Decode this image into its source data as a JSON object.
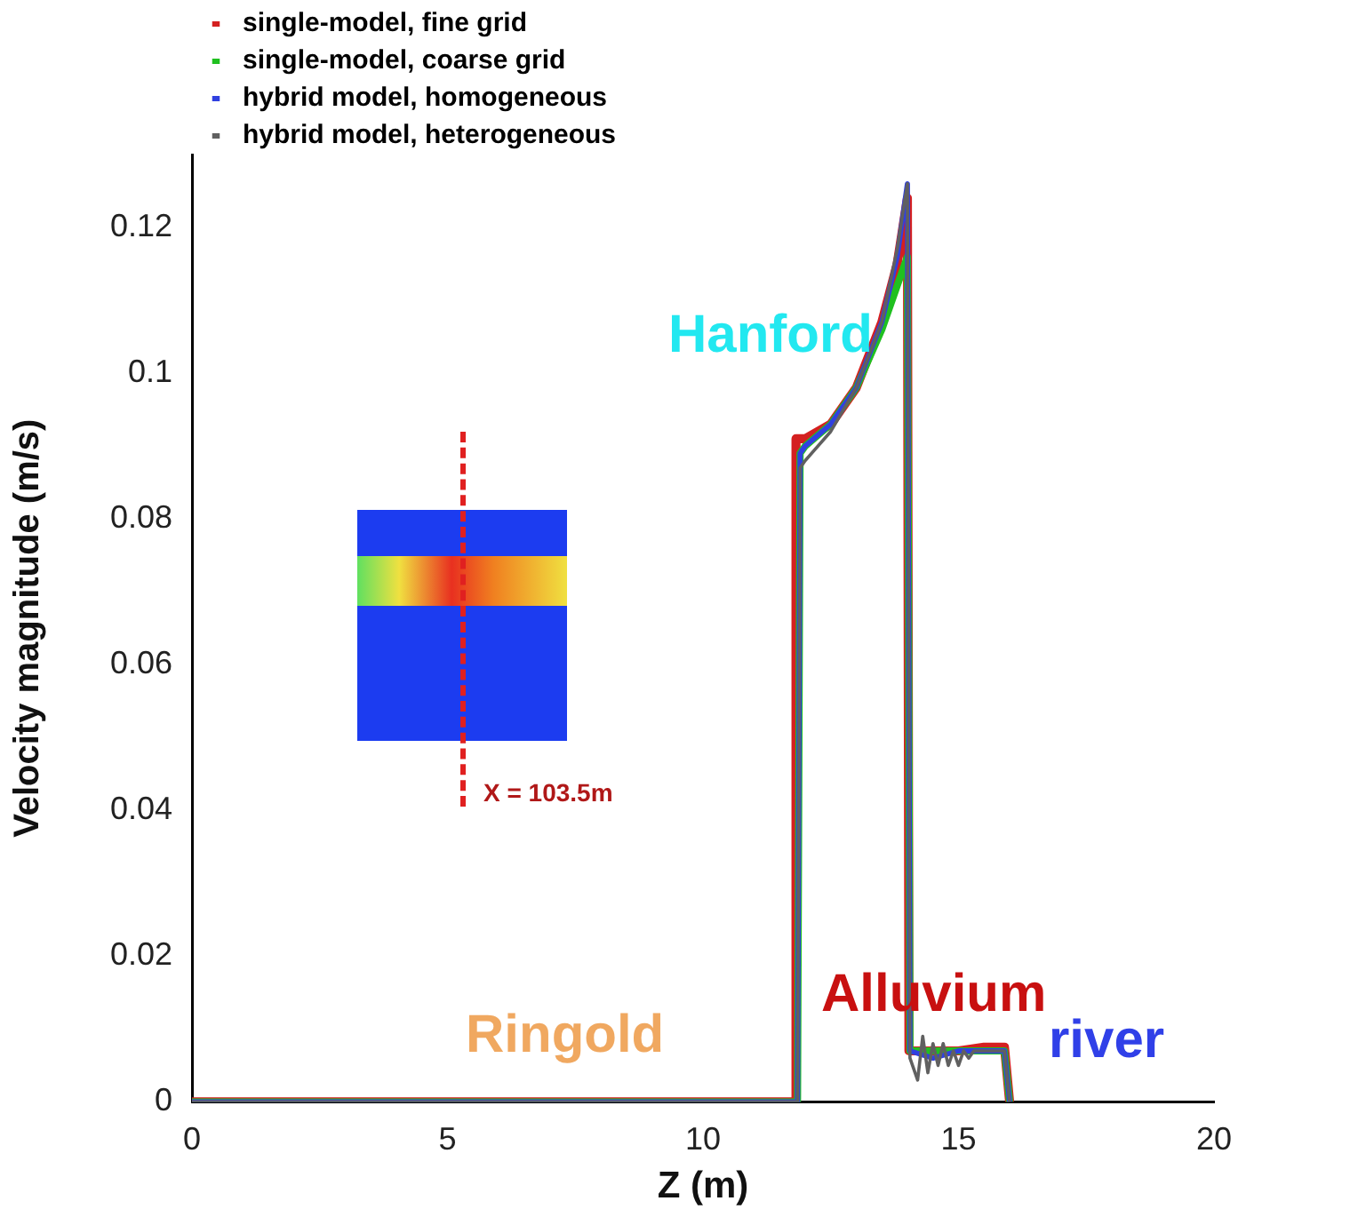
{
  "chart_data": {
    "type": "line",
    "xlabel": "Z (m)",
    "ylabel": "Velocity magnitude (m/s)",
    "xlim": [
      0,
      20
    ],
    "xticks": [
      0,
      5,
      10,
      15,
      20
    ],
    "ylim": [
      0,
      0.13
    ],
    "yticks": [
      0,
      0.02,
      0.04,
      0.06,
      0.08,
      0.1,
      0.12
    ],
    "grid": false,
    "legend": "top left",
    "marker": "none",
    "line_style": "solid",
    "annotations": [
      "Hanford",
      "Ringold",
      "Alluvium",
      "river",
      "X = 103.5m"
    ],
    "series": [
      {
        "name": "single-model, fine grid",
        "color": "#d42020",
        "x": [
          0,
          11.8,
          11.82,
          12,
          12.5,
          13,
          13.5,
          13.8,
          14,
          14.03,
          14.5,
          15,
          15.5,
          15.9,
          16
        ],
        "values": [
          0,
          0,
          0.091,
          0.091,
          0.093,
          0.098,
          0.107,
          0.115,
          0.124,
          0.007,
          0.007,
          0.007,
          0.0075,
          0.0075,
          0
        ]
      },
      {
        "name": "single-model, coarse grid",
        "color": "#20c020",
        "x": [
          0,
          11.85,
          11.9,
          12,
          12.5,
          13,
          13.5,
          13.8,
          14,
          14.05,
          14.5,
          15,
          15.5,
          15.9,
          16
        ],
        "values": [
          0,
          0,
          0.089,
          0.09,
          0.093,
          0.098,
          0.106,
          0.112,
          0.116,
          0.007,
          0.007,
          0.007,
          0.007,
          0.007,
          0
        ]
      },
      {
        "name": "hybrid model, homogeneous",
        "color": "#3040e0",
        "x": [
          0,
          11.85,
          11.9,
          12,
          12.5,
          13,
          13.5,
          13.8,
          14,
          14.05,
          14.5,
          15,
          15.5,
          15.9,
          16
        ],
        "values": [
          0,
          0,
          0.089,
          0.09,
          0.093,
          0.098,
          0.107,
          0.116,
          0.126,
          0.007,
          0.006,
          0.007,
          0.007,
          0.007,
          0
        ]
      },
      {
        "name": "hybrid model, heterogeneous",
        "color": "#606060",
        "x": [
          0,
          11.85,
          11.9,
          12,
          12.5,
          13,
          13.5,
          13.8,
          14,
          14.05,
          14.2,
          14.3,
          14.4,
          14.5,
          14.6,
          14.7,
          14.8,
          14.9,
          15,
          15.1,
          15.2,
          15.3,
          15.5,
          15.9,
          16
        ],
        "values": [
          0,
          0,
          0.087,
          0.088,
          0.092,
          0.098,
          0.107,
          0.117,
          0.126,
          0.006,
          0.003,
          0.009,
          0.004,
          0.008,
          0.005,
          0.008,
          0.005,
          0.007,
          0.005,
          0.007,
          0.006,
          0.007,
          0.007,
          0.007,
          0
        ]
      }
    ]
  }
}
